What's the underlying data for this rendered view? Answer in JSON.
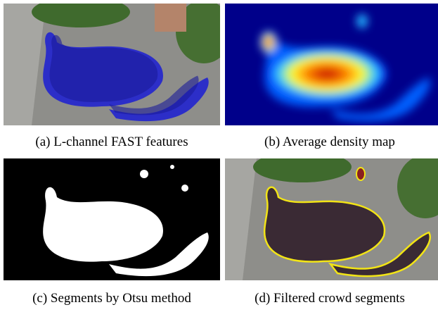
{
  "panels": [
    {
      "caption": "(a) L-channel FAST features"
    },
    {
      "caption": "(b) Average density map"
    },
    {
      "caption": "(c) Segments by Otsu method"
    },
    {
      "caption": "(d) Filtered crowd segments"
    }
  ]
}
